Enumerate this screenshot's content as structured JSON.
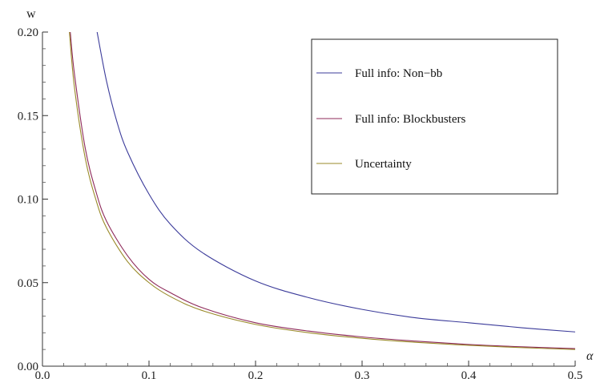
{
  "chart_data": {
    "type": "line",
    "title": "",
    "xlabel": "α",
    "ylabel": "w",
    "xlim": [
      0.0,
      0.5
    ],
    "ylim": [
      0.0,
      0.2
    ],
    "xticks": [
      0.0,
      0.1,
      0.2,
      0.3,
      0.4,
      0.5
    ],
    "xtick_labels": [
      "0.0",
      "0.1",
      "0.2",
      "0.3",
      "0.4",
      "0.5"
    ],
    "yticks": [
      0.0,
      0.05,
      0.1,
      0.15,
      0.2
    ],
    "ytick_labels": [
      "0.00",
      "0.05",
      "0.10",
      "0.15",
      "0.20"
    ],
    "grid": false,
    "legend_position": "top-right",
    "series": [
      {
        "name": "Full info: Non−bb",
        "color": "#3b3b9a",
        "x": [
          0.0513,
          0.06,
          0.07,
          0.08,
          0.1,
          0.12,
          0.15,
          0.2,
          0.25,
          0.3,
          0.35,
          0.4,
          0.45,
          0.5
        ],
        "y": [
          0.2,
          0.171,
          0.146,
          0.128,
          0.103,
          0.085,
          0.068,
          0.051,
          0.041,
          0.034,
          0.029,
          0.026,
          0.023,
          0.0205
        ]
      },
      {
        "name": "Full info: Blockbusters",
        "color": "#8e2a5a",
        "x": [
          0.0261,
          0.03,
          0.04,
          0.05,
          0.06,
          0.08,
          0.1,
          0.12,
          0.15,
          0.2,
          0.25,
          0.3,
          0.35,
          0.4,
          0.45,
          0.5
        ],
        "y": [
          0.2,
          0.175,
          0.131,
          0.105,
          0.087,
          0.066,
          0.052,
          0.044,
          0.035,
          0.026,
          0.021,
          0.0175,
          0.015,
          0.013,
          0.0116,
          0.0105
        ]
      },
      {
        "name": "Uncertainty",
        "color": "#9a8a2a",
        "x": [
          0.0253,
          0.03,
          0.04,
          0.05,
          0.06,
          0.08,
          0.1,
          0.12,
          0.15,
          0.2,
          0.25,
          0.3,
          0.35,
          0.4,
          0.45,
          0.5
        ],
        "y": [
          0.2,
          0.167,
          0.125,
          0.1,
          0.083,
          0.0625,
          0.05,
          0.0417,
          0.0333,
          0.025,
          0.02,
          0.0167,
          0.0143,
          0.0125,
          0.0111,
          0.01
        ]
      }
    ]
  }
}
